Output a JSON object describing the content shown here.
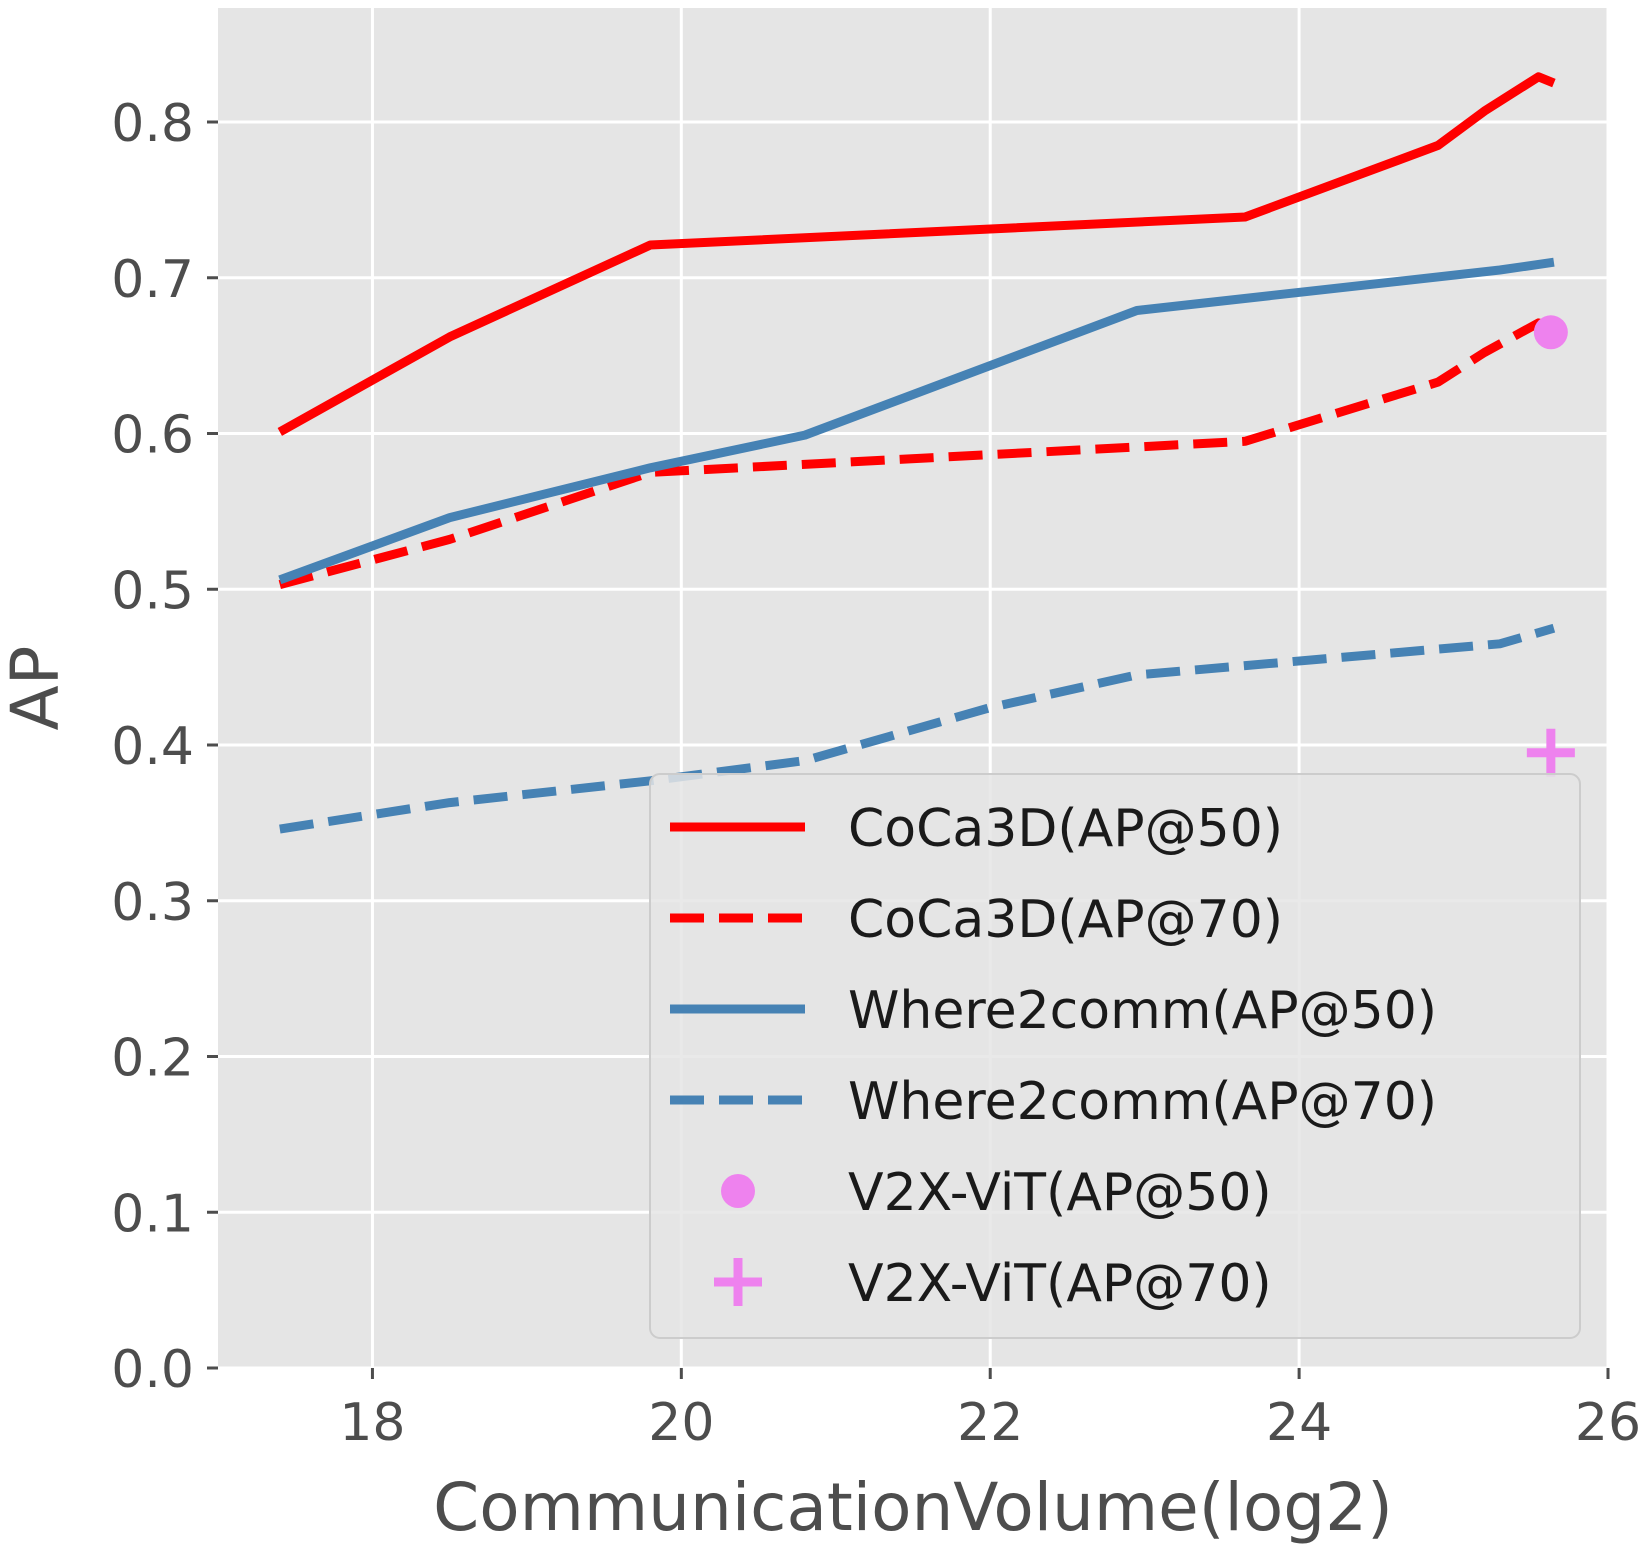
{
  "chart_data": {
    "type": "line",
    "title": "",
    "xlabel": "CommunicationVolume(log2)",
    "ylabel": "AP",
    "xlim": [
      17,
      26
    ],
    "ylim": [
      0,
      0.8732
    ],
    "xticks": [
      18,
      20,
      22,
      24,
      26
    ],
    "xtick_labels": [
      "18",
      "20",
      "22",
      "24",
      "26"
    ],
    "yticks": [
      0.0,
      0.1,
      0.2,
      0.3,
      0.4,
      0.5,
      0.6,
      0.7,
      0.8
    ],
    "ytick_labels": [
      "0.0",
      "0.1",
      "0.2",
      "0.3",
      "0.4",
      "0.5",
      "0.6",
      "0.7",
      "0.8"
    ],
    "grid": true,
    "legend_position": "lower-right",
    "series": [
      {
        "name": "CoCa3D(AP@50)",
        "kind": "line",
        "style": "solid",
        "color": "#ff0000",
        "x": [
          17.4,
          18.5,
          19.8,
          23.65,
          24.9,
          25.2,
          25.55,
          25.65
        ],
        "y": [
          0.601,
          0.662,
          0.721,
          0.739,
          0.785,
          0.807,
          0.829,
          0.825
        ]
      },
      {
        "name": "CoCa3D(AP@70)",
        "kind": "line",
        "style": "dashed",
        "color": "#ff0000",
        "x": [
          17.4,
          18.5,
          19.8,
          23.65,
          24.9,
          25.2,
          25.55,
          25.65
        ],
        "y": [
          0.503,
          0.532,
          0.575,
          0.595,
          0.633,
          0.652,
          0.671,
          0.668
        ]
      },
      {
        "name": "Where2comm(AP@50)",
        "kind": "line",
        "style": "solid",
        "color": "#4682b4",
        "x": [
          17.4,
          18.5,
          19.8,
          20.8,
          22.95,
          25.3,
          25.65
        ],
        "y": [
          0.506,
          0.546,
          0.578,
          0.599,
          0.679,
          0.705,
          0.71
        ]
      },
      {
        "name": "Where2comm(AP@70)",
        "kind": "line",
        "style": "dashed",
        "color": "#4682b4",
        "x": [
          17.4,
          18.5,
          19.8,
          20.8,
          22.0,
          22.95,
          25.3,
          25.65
        ],
        "y": [
          0.346,
          0.363,
          0.377,
          0.39,
          0.424,
          0.445,
          0.465,
          0.475
        ]
      },
      {
        "name": "V2X-ViT(AP@50)",
        "kind": "marker",
        "marker": "circle",
        "color": "#ee82ee",
        "x": [
          25.63
        ],
        "y": [
          0.665
        ]
      },
      {
        "name": "V2X-ViT(AP@70)",
        "kind": "marker",
        "marker": "plus",
        "color": "#ee82ee",
        "x": [
          25.63
        ],
        "y": [
          0.395
        ]
      }
    ]
  }
}
